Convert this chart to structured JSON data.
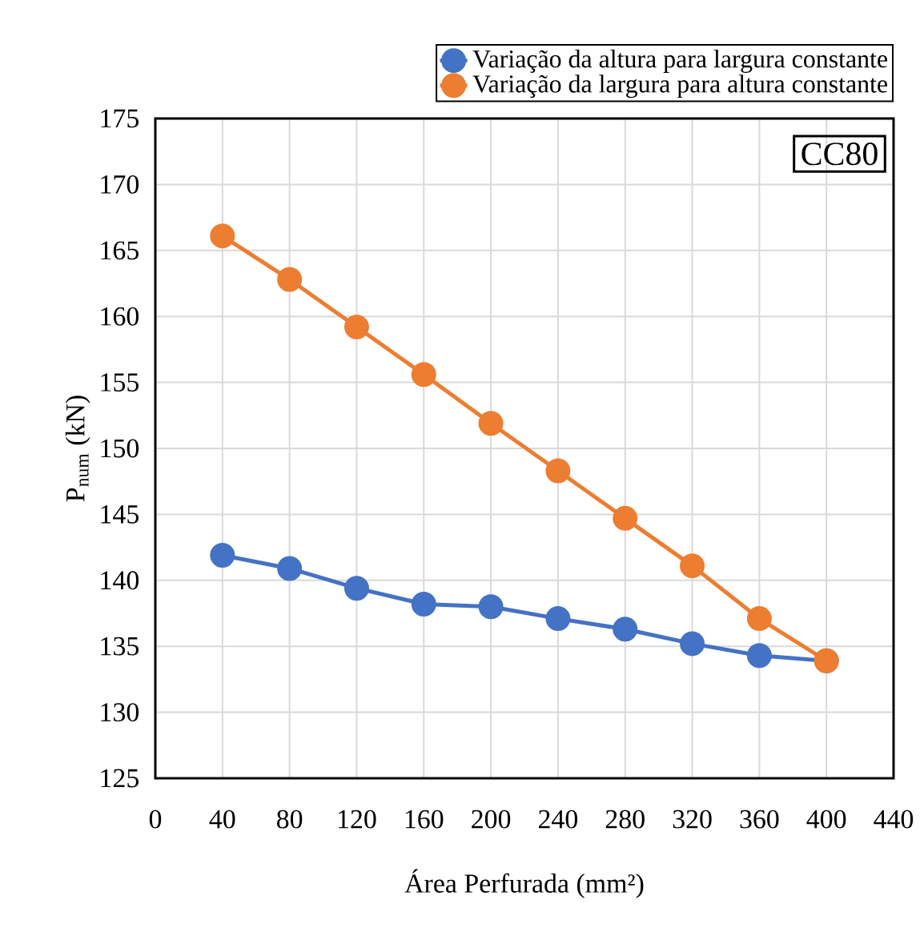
{
  "chart_data": {
    "type": "line",
    "xlabel": "Área Perfurada (mm²)",
    "ylabel": "P$_{num}$ (kN)",
    "x": [
      40,
      80,
      120,
      160,
      200,
      240,
      280,
      320,
      360,
      400
    ],
    "series": [
      {
        "name": "Variação da altura para largura constante",
        "color": "#4472c4",
        "values": [
          141.9,
          140.9,
          139.4,
          138.2,
          138.0,
          137.1,
          136.3,
          135.2,
          134.3,
          133.9
        ]
      },
      {
        "name": "Variação da largura para altura constante",
        "color": "#ed7d31",
        "values": [
          166.1,
          162.8,
          159.2,
          155.6,
          151.9,
          148.3,
          144.7,
          141.1,
          137.1,
          133.9
        ]
      }
    ],
    "xlim": [
      0,
      440
    ],
    "xticks": [
      0,
      40,
      80,
      120,
      160,
      200,
      240,
      280,
      320,
      360,
      400,
      440
    ],
    "ylim": [
      125,
      175
    ],
    "yticks": [
      125,
      130,
      135,
      140,
      145,
      150,
      155,
      160,
      165,
      170,
      175
    ],
    "annotations": [
      "CC80"
    ],
    "grid": true,
    "legend": "top",
    "marker": "circle",
    "line_style": "solid"
  }
}
